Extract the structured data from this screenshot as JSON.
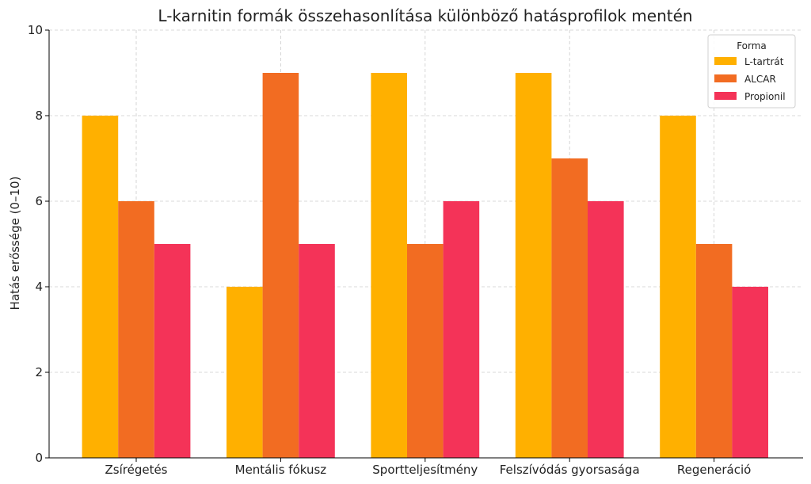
{
  "chart_data": {
    "type": "bar",
    "title": "L-karnitin formák összehasonlítása különböző hatásprofilok mentén",
    "xlabel": "",
    "ylabel": "Hatás erőssége (0–10)",
    "ylim": [
      0,
      10
    ],
    "yticks": [
      0,
      2,
      4,
      6,
      8,
      10
    ],
    "grid": true,
    "legend": {
      "title": "Forma",
      "placement": "top-right"
    },
    "categories": [
      "Zsírégetés",
      "Mentális fókusz",
      "Sportteljesítmény",
      "Felszívódás gyorsasága",
      "Regeneráció"
    ],
    "series": [
      {
        "name": "L-tartrát",
        "color": "#FFB000",
        "values": [
          8,
          4,
          9,
          9,
          8
        ]
      },
      {
        "name": "ALCAR",
        "color": "#F26C22",
        "values": [
          6,
          9,
          5,
          7,
          5
        ]
      },
      {
        "name": "Propionil",
        "color": "#F43358",
        "values": [
          5,
          5,
          6,
          6,
          4
        ]
      }
    ]
  }
}
